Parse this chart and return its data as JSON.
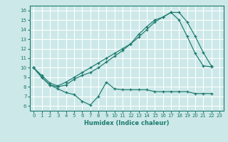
{
  "xlabel": "Humidex (Indice chaleur)",
  "bg_color": "#cde8e8",
  "line_color": "#1a7a6e",
  "grid_color": "#b8d8d8",
  "xlim": [
    -0.5,
    23.5
  ],
  "ylim": [
    5.5,
    16.5
  ],
  "xticks": [
    0,
    1,
    2,
    3,
    4,
    5,
    6,
    7,
    8,
    9,
    10,
    11,
    12,
    13,
    14,
    15,
    16,
    17,
    18,
    19,
    20,
    21,
    22,
    23
  ],
  "yticks": [
    6,
    7,
    8,
    9,
    10,
    11,
    12,
    13,
    14,
    15,
    16
  ],
  "line1_x": [
    0,
    1,
    2,
    3,
    4,
    5,
    6,
    7,
    8,
    9,
    10,
    11,
    12,
    13,
    14,
    15,
    16,
    17,
    18,
    19,
    20,
    21,
    22
  ],
  "line1_y": [
    10,
    9,
    8.2,
    8.0,
    8.2,
    8.8,
    9.2,
    9.5,
    10.0,
    10.6,
    11.2,
    11.8,
    12.5,
    13.2,
    14.0,
    14.8,
    15.3,
    15.8,
    15.0,
    13.3,
    11.5,
    10.2,
    10.1
  ],
  "line2_x": [
    0,
    1,
    2,
    3,
    4,
    5,
    6,
    7,
    8,
    9,
    10,
    11,
    12,
    13,
    14,
    15,
    16,
    17,
    18,
    19,
    20,
    21,
    22
  ],
  "line2_y": [
    10,
    9.2,
    8.4,
    8.1,
    8.5,
    9.0,
    9.5,
    10.0,
    10.5,
    11.0,
    11.5,
    12.0,
    12.5,
    13.5,
    14.3,
    15.0,
    15.3,
    15.8,
    15.8,
    14.8,
    13.3,
    11.6,
    10.2
  ],
  "line3_x": [
    0,
    1,
    2,
    3,
    4,
    5,
    6,
    7,
    8,
    9,
    10,
    11,
    12,
    13,
    14,
    15,
    16,
    17,
    18,
    19,
    20,
    21,
    22
  ],
  "line3_y": [
    10,
    9.0,
    8.2,
    7.8,
    7.4,
    7.2,
    6.5,
    6.1,
    7.0,
    8.5,
    7.8,
    7.7,
    7.7,
    7.7,
    7.7,
    7.5,
    7.5,
    7.5,
    7.5,
    7.5,
    7.3,
    7.3,
    7.3
  ]
}
